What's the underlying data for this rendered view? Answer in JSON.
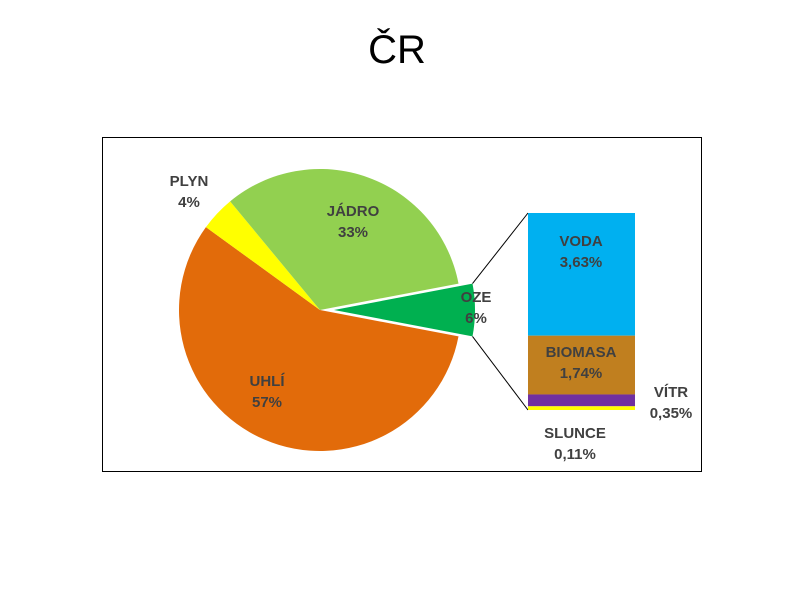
{
  "title": "ČR",
  "chart_data": [
    {
      "type": "pie",
      "categories": [
        "UHLÍ",
        "PLYN",
        "JÁDRO",
        "OZE"
      ],
      "values": [
        57,
        4,
        33,
        6
      ],
      "value_labels": [
        "57%",
        "4%",
        "33%",
        "6%"
      ],
      "colors": [
        "#E26B0A",
        "#FFFF00",
        "#92D050",
        "#00B050"
      ],
      "exploded": "OZE",
      "legend": "none"
    },
    {
      "type": "bar",
      "stacked": true,
      "parent": "OZE",
      "categories": [
        "VODA",
        "BIOMASA",
        "VÍTR",
        "SLUNCE"
      ],
      "values": [
        3.63,
        1.74,
        0.35,
        0.11
      ],
      "value_labels": [
        "3,63%",
        "1,74%",
        "0,35%",
        "0,11%"
      ],
      "colors": [
        "#00B0F0",
        "#C07F1F",
        "#7030A0",
        "#FFFF00"
      ]
    }
  ]
}
